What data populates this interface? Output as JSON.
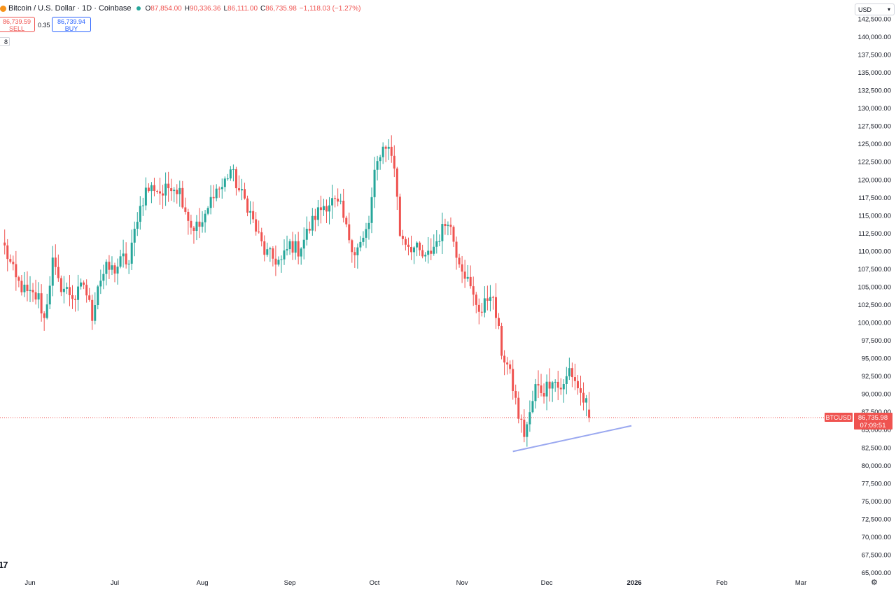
{
  "header": {
    "title": "Bitcoin / U.S. Dollar · 1D · Coinbase",
    "ohlc": [
      {
        "label": "O",
        "value": "87,854.00"
      },
      {
        "label": "H",
        "value": "90,336.36"
      },
      {
        "label": "L",
        "value": "86,111.00"
      },
      {
        "label": "C",
        "value": "86,735.98"
      },
      {
        "label": "",
        "value": "−1,118.03 (−1.27%)"
      }
    ]
  },
  "trade": {
    "sell_price": "86,739.59",
    "sell_label": "SELL",
    "spread": "0.35",
    "buy_price": "86,739.94",
    "buy_label": "BUY"
  },
  "collapse_label": "8",
  "currency": "USD",
  "logo_text": "17",
  "settings_icon": "gear-icon",
  "colors": {
    "up": "#26a69a",
    "down": "#ef5350",
    "trendline": "#9aa8f0",
    "price_line": "#ef5350"
  },
  "chart_data": {
    "type": "candlestick",
    "symbol": "BTCUSD",
    "interval": "1D",
    "exchange": "Coinbase",
    "last_price": 86735.98,
    "last_price_label": "86,735.98",
    "countdown": "07:09:51",
    "price_tag": "BTCUSD",
    "ylim": [
      65000,
      143000
    ],
    "yticks": [
      65000,
      67500,
      70000,
      72500,
      75000,
      77500,
      80000,
      82500,
      85000,
      87500,
      90000,
      92500,
      95000,
      97500,
      100000,
      102500,
      105000,
      107500,
      110000,
      112500,
      115000,
      117500,
      120000,
      122500,
      125000,
      127500,
      130000,
      132500,
      135000,
      137500,
      140000,
      142500
    ],
    "xaxis_labels": [
      {
        "label": "Jun",
        "day": 0
      },
      {
        "label": "Jul",
        "day": 30
      },
      {
        "label": "Aug",
        "day": 61
      },
      {
        "label": "Sep",
        "day": 92
      },
      {
        "label": "Oct",
        "day": 122
      },
      {
        "label": "Nov",
        "day": 153
      },
      {
        "label": "Dec",
        "day": 183
      },
      {
        "label": "2026",
        "day": 214
      },
      {
        "label": "Feb",
        "day": 245
      },
      {
        "label": "Mar",
        "day": 273
      }
    ],
    "close_anchors": [
      [
        -9,
        110500
      ],
      [
        -5,
        106000
      ],
      [
        -1,
        104000
      ],
      [
        3,
        103500
      ],
      [
        5,
        100500
      ],
      [
        8,
        108500
      ],
      [
        10,
        105500
      ],
      [
        13,
        104500
      ],
      [
        16,
        103500
      ],
      [
        19,
        105500
      ],
      [
        22,
        101000
      ],
      [
        24,
        105500
      ],
      [
        27,
        107500
      ],
      [
        30,
        107500
      ],
      [
        33,
        109000
      ],
      [
        35,
        108200
      ],
      [
        38,
        115000
      ],
      [
        41,
        118500
      ],
      [
        44,
        119000
      ],
      [
        47,
        118000
      ],
      [
        50,
        119500
      ],
      [
        53,
        118500
      ],
      [
        57,
        113500
      ],
      [
        60,
        113500
      ],
      [
        62,
        114500
      ],
      [
        65,
        118500
      ],
      [
        68,
        119000
      ],
      [
        71,
        121500
      ],
      [
        74,
        118500
      ],
      [
        77,
        116500
      ],
      [
        80,
        113000
      ],
      [
        83,
        110000
      ],
      [
        86,
        109000
      ],
      [
        89,
        108500
      ],
      [
        92,
        111000
      ],
      [
        95,
        110200
      ],
      [
        98,
        112500
      ],
      [
        101,
        115000
      ],
      [
        104,
        116500
      ],
      [
        107,
        117000
      ],
      [
        110,
        116000
      ],
      [
        112,
        113000
      ],
      [
        115,
        110000
      ],
      [
        118,
        111500
      ],
      [
        120,
        114000
      ],
      [
        122,
        120500
      ],
      [
        124,
        124000
      ],
      [
        126,
        125000
      ],
      [
        128,
        123500
      ],
      [
        129,
        122000
      ],
      [
        131,
        112500
      ],
      [
        134,
        111000
      ],
      [
        137,
        110200
      ],
      [
        140,
        108800
      ],
      [
        143,
        110700
      ],
      [
        146,
        113000
      ],
      [
        148,
        114800
      ],
      [
        151,
        110000
      ],
      [
        154,
        107000
      ],
      [
        157,
        103500
      ],
      [
        160,
        101500
      ],
      [
        163,
        104500
      ],
      [
        165,
        101000
      ],
      [
        167,
        96000
      ],
      [
        169,
        94000
      ],
      [
        171,
        91000
      ],
      [
        173,
        87000
      ],
      [
        175,
        84500
      ],
      [
        177,
        87000
      ],
      [
        179,
        91000
      ],
      [
        182,
        90500
      ],
      [
        185,
        92500
      ],
      [
        187,
        91000
      ],
      [
        189,
        91000
      ],
      [
        191,
        93500
      ],
      [
        193,
        92000
      ],
      [
        195,
        90000
      ],
      [
        197,
        88500
      ],
      [
        198,
        86900
      ]
    ],
    "trendline": {
      "from": {
        "day": 171,
        "price": 82000
      },
      "to": {
        "day": 213,
        "price": 85600
      }
    }
  }
}
